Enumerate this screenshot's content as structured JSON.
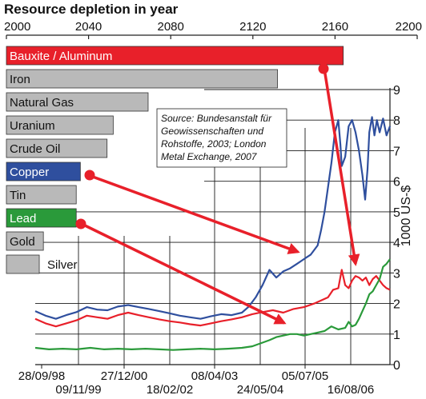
{
  "chart_data": [
    {
      "type": "bar",
      "title": "Resource depletion in year",
      "axis_ticks": [
        "2000",
        "2040",
        "2080",
        "2120",
        "2160",
        "2200"
      ],
      "xlim": [
        2000,
        2200
      ],
      "categories": [
        "Bauxite / Aluminum",
        "Iron",
        "Natural Gas",
        "Uranium",
        "Crude Oil",
        "Copper",
        "Tin",
        "Lead",
        "Gold",
        "Silver"
      ],
      "values": [
        2164,
        2132,
        2069,
        2052,
        2049,
        2036,
        2034,
        2034,
        2018,
        2016
      ],
      "bar_colors": [
        "#e8202a",
        "#b9b9b9",
        "#b9b9b9",
        "#b9b9b9",
        "#b9b9b9",
        "#2f4f9e",
        "#b9b9b9",
        "#2a9a3a",
        "#b9b9b9",
        "#b9b9b9"
      ]
    },
    {
      "type": "line",
      "ylabel": "1000 US-$",
      "ylim": [
        0,
        9
      ],
      "yticks": [
        "0",
        "1",
        "2",
        "3",
        "4",
        "5",
        "6",
        "7",
        "8",
        "9"
      ],
      "x_tick_labels_top_row": [
        "28/09/98",
        "27/12/00",
        "08/04/03",
        "05/07/05"
      ],
      "x_tick_labels_bottom_row": [
        "09/11/99",
        "18/02/02",
        "24/05/04",
        "16/08/06"
      ],
      "source": [
        "Source: Bundesanstalt für",
        "Geowissenschaften und",
        "Rohstoffe, 2003; London",
        "Metal Exchange, 2007"
      ],
      "series": [
        {
          "color": "#2f4f9e",
          "points": [
            [
              0,
              1.75
            ],
            [
              3,
              1.6
            ],
            [
              6,
              1.5
            ],
            [
              9,
              1.62
            ],
            [
              12,
              1.72
            ],
            [
              15,
              1.88
            ],
            [
              18,
              1.8
            ],
            [
              21,
              1.78
            ],
            [
              24,
              1.9
            ],
            [
              27,
              1.95
            ],
            [
              30,
              1.88
            ],
            [
              33,
              1.82
            ],
            [
              36,
              1.75
            ],
            [
              39,
              1.68
            ],
            [
              42,
              1.6
            ],
            [
              45,
              1.55
            ],
            [
              48,
              1.5
            ],
            [
              51,
              1.58
            ],
            [
              54,
              1.65
            ],
            [
              57,
              1.62
            ],
            [
              60,
              1.7
            ],
            [
              62,
              1.9
            ],
            [
              64,
              2.2
            ],
            [
              66,
              2.6
            ],
            [
              68,
              3.1
            ],
            [
              70,
              2.85
            ],
            [
              72,
              3.05
            ],
            [
              74,
              3.15
            ],
            [
              76,
              3.3
            ],
            [
              78,
              3.45
            ],
            [
              80,
              3.6
            ],
            [
              82,
              3.9
            ],
            [
              83,
              4.4
            ],
            [
              84,
              5.0
            ],
            [
              85,
              5.8
            ],
            [
              86,
              6.6
            ],
            [
              87,
              7.6
            ],
            [
              88,
              8.0
            ],
            [
              88.6,
              7.2
            ],
            [
              89,
              6.5
            ],
            [
              90,
              6.8
            ],
            [
              91,
              7.8
            ],
            [
              92,
              8.0
            ],
            [
              93,
              7.6
            ],
            [
              94,
              7.0
            ],
            [
              95,
              6.2
            ],
            [
              95.8,
              5.4
            ],
            [
              96.5,
              6.4
            ],
            [
              97,
              7.6
            ],
            [
              97.8,
              8.1
            ],
            [
              98.5,
              7.5
            ],
            [
              99.2,
              8.0
            ],
            [
              100,
              7.6
            ],
            [
              101,
              8.05
            ],
            [
              102,
              7.5
            ],
            [
              103,
              7.8
            ]
          ]
        },
        {
          "color": "#e8202a",
          "points": [
            [
              0,
              1.5
            ],
            [
              3,
              1.35
            ],
            [
              6,
              1.25
            ],
            [
              9,
              1.35
            ],
            [
              12,
              1.45
            ],
            [
              15,
              1.6
            ],
            [
              18,
              1.55
            ],
            [
              21,
              1.5
            ],
            [
              24,
              1.62
            ],
            [
              27,
              1.7
            ],
            [
              30,
              1.62
            ],
            [
              33,
              1.55
            ],
            [
              36,
              1.48
            ],
            [
              39,
              1.42
            ],
            [
              42,
              1.38
            ],
            [
              45,
              1.32
            ],
            [
              48,
              1.28
            ],
            [
              51,
              1.35
            ],
            [
              54,
              1.42
            ],
            [
              57,
              1.48
            ],
            [
              60,
              1.55
            ],
            [
              63,
              1.65
            ],
            [
              66,
              1.72
            ],
            [
              69,
              1.78
            ],
            [
              72,
              1.7
            ],
            [
              75,
              1.82
            ],
            [
              78,
              1.88
            ],
            [
              81,
              2.0
            ],
            [
              83,
              2.1
            ],
            [
              85,
              2.2
            ],
            [
              86.5,
              2.45
            ],
            [
              88,
              2.5
            ],
            [
              89,
              3.1
            ],
            [
              90,
              2.6
            ],
            [
              91,
              2.5
            ],
            [
              92,
              2.75
            ],
            [
              93,
              2.9
            ],
            [
              94,
              2.85
            ],
            [
              95,
              2.75
            ],
            [
              96,
              2.85
            ],
            [
              97,
              2.6
            ],
            [
              98,
              2.8
            ],
            [
              99,
              2.9
            ],
            [
              100,
              2.75
            ],
            [
              101,
              2.6
            ],
            [
              102,
              2.5
            ],
            [
              103,
              2.45
            ]
          ]
        },
        {
          "color": "#2a9a3a",
          "points": [
            [
              0,
              0.55
            ],
            [
              4,
              0.5
            ],
            [
              8,
              0.52
            ],
            [
              12,
              0.5
            ],
            [
              16,
              0.55
            ],
            [
              20,
              0.5
            ],
            [
              24,
              0.52
            ],
            [
              28,
              0.5
            ],
            [
              32,
              0.52
            ],
            [
              36,
              0.5
            ],
            [
              40,
              0.48
            ],
            [
              44,
              0.5
            ],
            [
              48,
              0.52
            ],
            [
              52,
              0.5
            ],
            [
              56,
              0.52
            ],
            [
              60,
              0.55
            ],
            [
              63,
              0.6
            ],
            [
              66,
              0.72
            ],
            [
              68,
              0.8
            ],
            [
              70,
              0.9
            ],
            [
              72,
              0.95
            ],
            [
              74,
              1.0
            ],
            [
              76,
              1.0
            ],
            [
              78,
              0.95
            ],
            [
              80,
              1.0
            ],
            [
              82,
              1.05
            ],
            [
              84,
              1.1
            ],
            [
              86,
              1.25
            ],
            [
              88,
              1.15
            ],
            [
              90,
              1.2
            ],
            [
              91,
              1.4
            ],
            [
              92,
              1.25
            ],
            [
              93,
              1.3
            ],
            [
              94,
              1.5
            ],
            [
              95,
              1.75
            ],
            [
              96,
              2.0
            ],
            [
              97,
              2.3
            ],
            [
              98,
              2.4
            ],
            [
              99,
              2.6
            ],
            [
              100,
              2.8
            ],
            [
              101,
              3.2
            ],
            [
              102,
              3.3
            ],
            [
              103,
              3.45
            ]
          ]
        }
      ]
    }
  ]
}
